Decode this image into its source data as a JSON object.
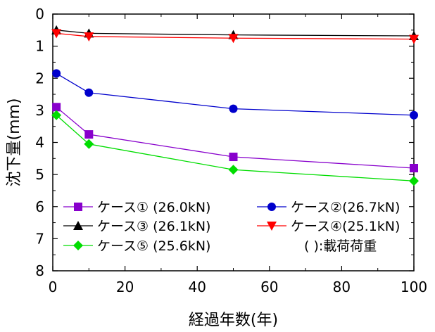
{
  "chart_data": {
    "type": "line",
    "xlabel": "経過年数(年)",
    "ylabel": "沈下量(mm)",
    "xlim": [
      0,
      100
    ],
    "ylim": [
      0,
      8
    ],
    "y_inverted": true,
    "xticks": [
      0,
      20,
      40,
      60,
      80,
      100
    ],
    "yticks": [
      0,
      1,
      2,
      3,
      4,
      5,
      6,
      7,
      8
    ],
    "grid": false,
    "legend_position": "bottom inside plot",
    "legend_note": "( ):載荷荷重",
    "series": [
      {
        "name": "ケース① (26.0kN)",
        "color": "#8800cc",
        "marker": "square",
        "x": [
          1,
          10,
          50,
          100
        ],
        "y": [
          2.9,
          3.75,
          4.45,
          4.8
        ]
      },
      {
        "name": "ケース②(26.7kN)",
        "color": "#0000cc",
        "marker": "circle",
        "x": [
          1,
          10,
          50,
          100
        ],
        "y": [
          1.85,
          2.45,
          2.95,
          3.15
        ]
      },
      {
        "name": "ケース③ (26.1kN)",
        "color": "#000000",
        "marker": "triangle-up",
        "x": [
          1,
          10,
          50,
          100
        ],
        "y": [
          0.5,
          0.6,
          0.65,
          0.68
        ]
      },
      {
        "name": "ケース④(25.1kN)",
        "color": "#ff0000",
        "marker": "triangle-down",
        "x": [
          1,
          10,
          50,
          100
        ],
        "y": [
          0.6,
          0.7,
          0.75,
          0.78
        ]
      },
      {
        "name": "ケース⑤ (25.6kN)",
        "color": "#00dd00",
        "marker": "diamond",
        "x": [
          1,
          10,
          50,
          100
        ],
        "y": [
          3.15,
          4.05,
          4.85,
          5.2
        ]
      }
    ]
  }
}
